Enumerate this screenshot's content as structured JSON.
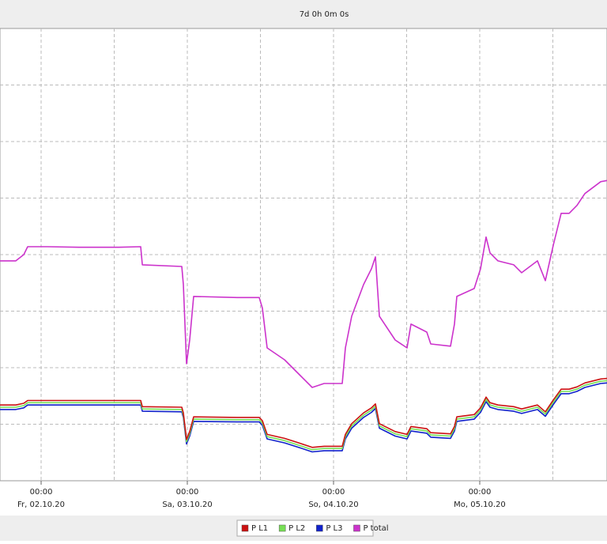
{
  "chart_data": {
    "type": "line",
    "title": "7d 0h 0m 0s",
    "x": [
      -6.75,
      -4.15,
      -2.85,
      -2.21,
      1.04,
      6.23,
      12.71,
      16.35,
      16.61,
      23.09,
      23.35,
      23.87,
      24.39,
      25.04,
      32.17,
      35.81,
      36.33,
      37.1,
      39.96,
      42.55,
      44.5,
      46.45,
      49.43,
      49.95,
      50.99,
      52.93,
      54.23,
      54.88,
      55.53,
      58.12,
      60.07,
      60.72,
      63.31,
      63.96,
      67.2,
      67.85,
      68.24,
      71.09,
      72.13,
      73.04,
      73.69,
      74.99,
      77.58,
      78.88,
      81.47,
      82.77,
      84.08,
      85.37,
      86.67,
      87.96,
      89.26,
      91.85,
      92.89
    ],
    "series": [
      {
        "name": "P L1",
        "color": "#cc1111",
        "values": [
          1.34,
          1.34,
          1.37,
          1.42,
          1.42,
          1.42,
          1.42,
          1.42,
          1.31,
          1.3,
          1.2,
          0.73,
          0.87,
          1.13,
          1.12,
          1.12,
          1.06,
          0.82,
          0.75,
          0.66,
          0.59,
          0.61,
          0.61,
          0.82,
          1.01,
          1.2,
          1.29,
          1.36,
          1.01,
          0.87,
          0.82,
          0.96,
          0.92,
          0.85,
          0.83,
          0.96,
          1.13,
          1.17,
          1.29,
          1.48,
          1.38,
          1.34,
          1.31,
          1.27,
          1.34,
          1.22,
          1.43,
          1.62,
          1.62,
          1.66,
          1.73,
          1.8,
          1.81
        ]
      },
      {
        "name": "P L2",
        "color": "#77e055",
        "values": [
          1.3,
          1.3,
          1.33,
          1.38,
          1.38,
          1.38,
          1.38,
          1.38,
          1.27,
          1.26,
          1.16,
          0.69,
          0.83,
          1.09,
          1.08,
          1.08,
          1.02,
          0.78,
          0.71,
          0.62,
          0.55,
          0.57,
          0.57,
          0.78,
          0.97,
          1.16,
          1.25,
          1.32,
          0.97,
          0.83,
          0.78,
          0.92,
          0.88,
          0.81,
          0.79,
          0.92,
          1.09,
          1.13,
          1.25,
          1.44,
          1.34,
          1.3,
          1.27,
          1.23,
          1.3,
          1.18,
          1.39,
          1.58,
          1.58,
          1.62,
          1.69,
          1.76,
          1.77
        ]
      },
      {
        "name": "P L3",
        "color": "#1122cc",
        "values": [
          1.26,
          1.26,
          1.29,
          1.34,
          1.34,
          1.34,
          1.34,
          1.34,
          1.23,
          1.22,
          1.12,
          0.65,
          0.79,
          1.05,
          1.04,
          1.04,
          0.98,
          0.74,
          0.67,
          0.58,
          0.51,
          0.53,
          0.53,
          0.74,
          0.93,
          1.12,
          1.21,
          1.28,
          0.93,
          0.79,
          0.74,
          0.88,
          0.84,
          0.77,
          0.75,
          0.88,
          1.05,
          1.09,
          1.21,
          1.4,
          1.3,
          1.26,
          1.23,
          1.19,
          1.26,
          1.14,
          1.35,
          1.54,
          1.54,
          1.58,
          1.65,
          1.72,
          1.73
        ]
      },
      {
        "name": "P total",
        "color": "#cc33cc",
        "values": [
          3.89,
          3.89,
          4.0,
          4.14,
          4.14,
          4.13,
          4.13,
          4.14,
          3.82,
          3.79,
          3.47,
          2.07,
          2.49,
          3.26,
          3.24,
          3.24,
          3.05,
          2.35,
          2.14,
          1.86,
          1.65,
          1.72,
          1.72,
          2.35,
          2.91,
          3.47,
          3.75,
          3.96,
          2.91,
          2.49,
          2.35,
          2.77,
          2.63,
          2.42,
          2.38,
          2.77,
          3.26,
          3.4,
          3.75,
          4.31,
          4.03,
          3.89,
          3.82,
          3.68,
          3.89,
          3.54,
          4.17,
          4.73,
          4.73,
          4.87,
          5.08,
          5.29,
          5.31
        ]
      }
    ],
    "xlim": [
      -6.75,
      92.89
    ],
    "ylim": [
      0,
      8
    ],
    "xticks": [
      {
        "value": 0,
        "label": "00:00"
      },
      {
        "value": 24,
        "label": "00:00"
      },
      {
        "value": 48,
        "label": "00:00"
      },
      {
        "value": 72,
        "label": "00:00"
      }
    ],
    "xtick_dates": [
      "Fr, 02.10.20",
      "Sa, 03.10.20",
      "So, 04.10.20",
      "Mo, 05.10.20"
    ],
    "xgrid_minor": [
      12,
      36,
      60,
      84
    ],
    "ygrid": [
      1,
      2,
      3,
      4,
      5,
      6,
      7
    ],
    "grid": true
  }
}
